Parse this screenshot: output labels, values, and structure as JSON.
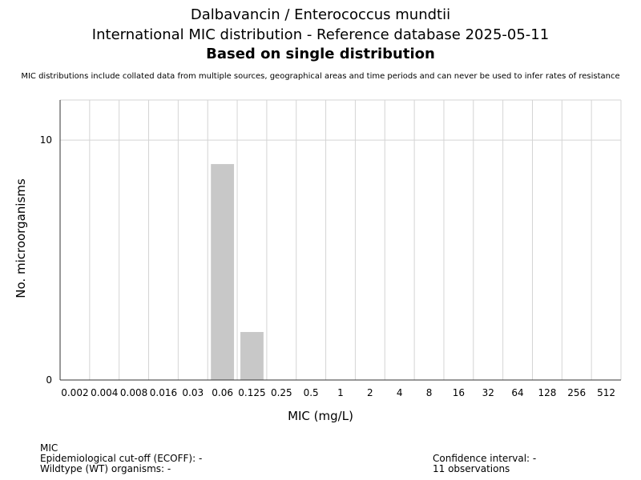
{
  "chart_data": {
    "type": "bar",
    "title": "Dalbavancin / Enterococcus mundtii",
    "subtitle": "International MIC distribution - Reference database 2025-05-11",
    "subtitle2": "Based on single distribution",
    "disclaimer": "MIC distributions include collated data from multiple sources, geographical areas and time periods and can never be used to infer rates of resistance",
    "xlabel": "MIC (mg/L)",
    "ylabel": "No. microorganisms",
    "categories": [
      "0.002",
      "0.004",
      "0.008",
      "0.016",
      "0.03",
      "0.06",
      "0.125",
      "0.25",
      "0.5",
      "1",
      "2",
      "4",
      "8",
      "16",
      "32",
      "64",
      "128",
      "256",
      "512"
    ],
    "values": [
      0,
      0,
      0,
      0,
      0,
      9,
      2,
      0,
      0,
      0,
      0,
      0,
      0,
      0,
      0,
      0,
      0,
      0,
      0
    ],
    "ylim": [
      0,
      11.67
    ],
    "yticks": [
      0,
      10
    ],
    "grid": true,
    "bar_color": "#c8c8c8"
  },
  "footer": {
    "left": [
      "MIC",
      "Epidemiological cut-off (ECOFF): -",
      "Wildtype (WT) organisms:  -"
    ],
    "right": [
      "Confidence interval: -",
      "11 observations"
    ]
  }
}
